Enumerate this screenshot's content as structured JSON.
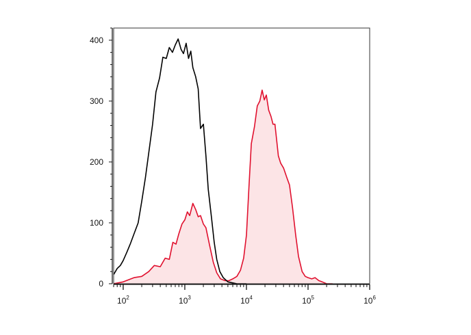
{
  "chart_data": {
    "type": "area",
    "title": "",
    "xlabel": "",
    "ylabel": "",
    "x_scale": "log",
    "xlim": [
      70,
      1000000
    ],
    "ylim": [
      0,
      420
    ],
    "grid": false,
    "x_ticks": [
      {
        "base": "10",
        "exp": "2",
        "value": 100
      },
      {
        "base": "10",
        "exp": "3",
        "value": 1000
      },
      {
        "base": "10",
        "exp": "4",
        "value": 10000
      },
      {
        "base": "10",
        "exp": "5",
        "value": 100000
      },
      {
        "base": "10",
        "exp": "6",
        "value": 1000000
      }
    ],
    "y_ticks": [
      {
        "label": "0",
        "value": 0
      },
      {
        "label": "100",
        "value": 100
      },
      {
        "label": "200",
        "value": 200
      },
      {
        "label": "300",
        "value": 300
      },
      {
        "label": "400",
        "value": 400
      }
    ],
    "series": [
      {
        "line_color": "#000000",
        "fill_color": "none",
        "x": [
          70,
          80,
          90,
          100,
          115,
          130,
          150,
          175,
          200,
          230,
          260,
          300,
          340,
          390,
          440,
          500,
          560,
          630,
          700,
          780,
          870,
          950,
          1050,
          1150,
          1250,
          1350,
          1500,
          1650,
          1800,
          2000,
          2200,
          2400,
          2700,
          3000,
          3300,
          3700,
          4200,
          5000,
          7000,
          10000
        ],
        "y": [
          15,
          25,
          30,
          38,
          52,
          65,
          82,
          100,
          135,
          175,
          215,
          262,
          315,
          338,
          372,
          370,
          388,
          380,
          392,
          402,
          385,
          378,
          395,
          370,
          382,
          355,
          340,
          320,
          255,
          262,
          210,
          155,
          110,
          68,
          40,
          20,
          10,
          3,
          0,
          0
        ]
      },
      {
        "line_color": "#e0102e",
        "fill_color": "#fce4e6",
        "x": [
          70,
          100,
          150,
          200,
          260,
          320,
          400,
          480,
          560,
          640,
          720,
          800,
          900,
          1000,
          1100,
          1200,
          1350,
          1500,
          1650,
          1800,
          2000,
          2200,
          2500,
          2900,
          3300,
          3800,
          4500,
          5200,
          6000,
          7000,
          8000,
          9000,
          10000,
          11000,
          12000,
          13500,
          15000,
          16500,
          18000,
          19500,
          21000,
          23000,
          25000,
          27000,
          29000,
          31000,
          33000,
          36000,
          40000,
          45000,
          50000,
          56000,
          63000,
          70000,
          80000,
          90000,
          100000,
          115000,
          130000,
          150000,
          170000,
          200000,
          250000
        ],
        "y": [
          0,
          3,
          10,
          12,
          20,
          30,
          28,
          42,
          40,
          68,
          65,
          82,
          98,
          105,
          118,
          112,
          132,
          122,
          110,
          112,
          98,
          92,
          65,
          35,
          18,
          8,
          5,
          5,
          8,
          12,
          22,
          42,
          80,
          160,
          230,
          258,
          292,
          300,
          318,
          302,
          310,
          285,
          275,
          262,
          262,
          235,
          210,
          198,
          190,
          175,
          162,
          125,
          80,
          45,
          20,
          12,
          10,
          8,
          10,
          5,
          3,
          0,
          0
        ]
      }
    ]
  }
}
